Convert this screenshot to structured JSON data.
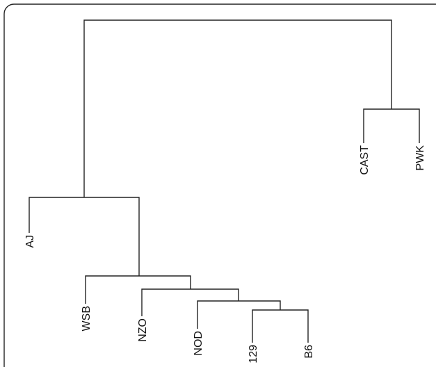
{
  "dendrogram": {
    "leaves": [
      {
        "id": "aj",
        "label": "AJ"
      },
      {
        "id": "wsb",
        "label": "WSB"
      },
      {
        "id": "nzo",
        "label": "NZO"
      },
      {
        "id": "nod",
        "label": "NOD"
      },
      {
        "id": "129",
        "label": "129"
      },
      {
        "id": "b6",
        "label": "B6"
      },
      {
        "id": "cast",
        "label": "CAST"
      },
      {
        "id": "pwk",
        "label": "PWK"
      }
    ]
  }
}
